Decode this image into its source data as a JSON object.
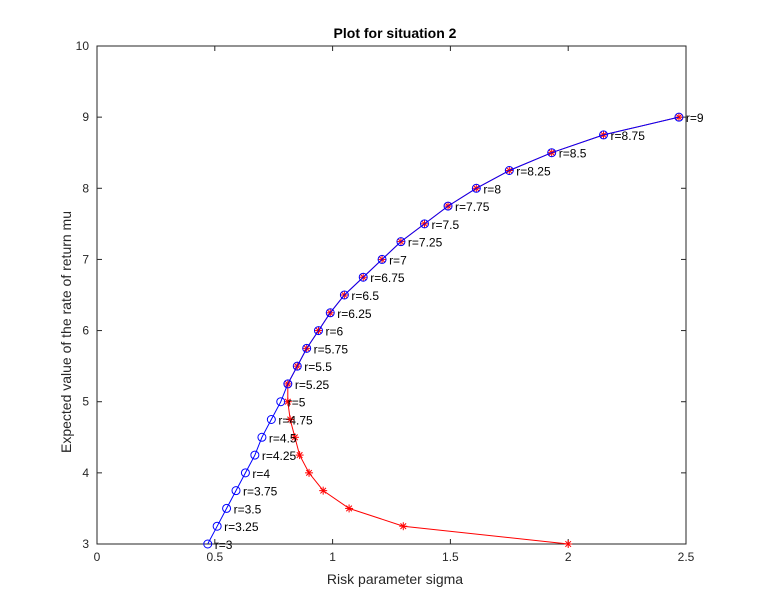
{
  "chart_data": {
    "type": "line",
    "title": "Plot for situation 2",
    "xlabel": "Risk parameter sigma",
    "ylabel": "Expected value of the rate of return mu",
    "xlim": [
      0,
      2.5
    ],
    "ylim": [
      3,
      10
    ],
    "xticks": [
      "0",
      "0.5",
      "1",
      "1.5",
      "2",
      "2.5"
    ],
    "yticks": [
      "3",
      "4",
      "5",
      "6",
      "7",
      "8",
      "9",
      "10"
    ],
    "grid": false,
    "colors": {
      "blue": "#0000ff",
      "red": "#ff0000",
      "magenta": "#ff00ff",
      "axis": "#262626"
    },
    "series": [
      {
        "marker": "circle",
        "color": "#0000ff",
        "points": [
          {
            "x": 0.47,
            "y": 3.0,
            "label": "r=3"
          },
          {
            "x": 0.51,
            "y": 3.25,
            "label": "r=3.25"
          },
          {
            "x": 0.55,
            "y": 3.5,
            "label": "r=3.5"
          },
          {
            "x": 0.59,
            "y": 3.75,
            "label": "r=3.75"
          },
          {
            "x": 0.63,
            "y": 4.0,
            "label": "r=4"
          },
          {
            "x": 0.67,
            "y": 4.25,
            "label": "r=4.25"
          },
          {
            "x": 0.7,
            "y": 4.5,
            "label": "r=4.5"
          },
          {
            "x": 0.74,
            "y": 4.75,
            "label": "r=4.75"
          },
          {
            "x": 0.78,
            "y": 5.0,
            "label": "r=5"
          },
          {
            "x": 0.81,
            "y": 5.25,
            "label": "r=5.25"
          },
          {
            "x": 0.85,
            "y": 5.5,
            "label": "r=5.5"
          },
          {
            "x": 0.89,
            "y": 5.75,
            "label": "r=5.75"
          },
          {
            "x": 0.94,
            "y": 6.0,
            "label": "r=6"
          },
          {
            "x": 0.99,
            "y": 6.25,
            "label": "r=6.25"
          },
          {
            "x": 1.05,
            "y": 6.5,
            "label": "r=6.5"
          },
          {
            "x": 1.13,
            "y": 6.75,
            "label": "r=6.75"
          },
          {
            "x": 1.21,
            "y": 7.0,
            "label": "r=7"
          },
          {
            "x": 1.29,
            "y": 7.25,
            "label": "r=7.25"
          },
          {
            "x": 1.39,
            "y": 7.5,
            "label": "r=7.5"
          },
          {
            "x": 1.49,
            "y": 7.75,
            "label": "r=7.75"
          },
          {
            "x": 1.61,
            "y": 8.0,
            "label": "r=8"
          },
          {
            "x": 1.75,
            "y": 8.25,
            "label": "r=8.25"
          },
          {
            "x": 1.93,
            "y": 8.5,
            "label": "r=8.5"
          },
          {
            "x": 2.15,
            "y": 8.75,
            "label": "r=8.75"
          },
          {
            "x": 2.47,
            "y": 9.0,
            "label": "r=9"
          }
        ]
      },
      {
        "marker": "asterisk",
        "color": "#ff0000",
        "points": [
          {
            "x": 2.0,
            "y": 3.0
          },
          {
            "x": 1.3,
            "y": 3.25
          },
          {
            "x": 1.07,
            "y": 3.5
          },
          {
            "x": 0.96,
            "y": 3.75
          },
          {
            "x": 0.9,
            "y": 4.0
          },
          {
            "x": 0.86,
            "y": 4.25
          },
          {
            "x": 0.84,
            "y": 4.5
          },
          {
            "x": 0.82,
            "y": 4.75
          },
          {
            "x": 0.81,
            "y": 5.0
          },
          {
            "x": 0.81,
            "y": 5.25
          },
          {
            "x": 0.85,
            "y": 5.5
          },
          {
            "x": 0.89,
            "y": 5.75
          },
          {
            "x": 0.94,
            "y": 6.0
          },
          {
            "x": 0.99,
            "y": 6.25
          },
          {
            "x": 1.05,
            "y": 6.5
          },
          {
            "x": 1.13,
            "y": 6.75
          },
          {
            "x": 1.21,
            "y": 7.0
          },
          {
            "x": 1.29,
            "y": 7.25
          },
          {
            "x": 1.39,
            "y": 7.5
          },
          {
            "x": 1.49,
            "y": 7.75
          },
          {
            "x": 1.61,
            "y": 8.0
          },
          {
            "x": 1.75,
            "y": 8.25
          },
          {
            "x": 1.93,
            "y": 8.5
          },
          {
            "x": 2.15,
            "y": 8.75
          },
          {
            "x": 2.47,
            "y": 9.0
          }
        ]
      }
    ]
  }
}
